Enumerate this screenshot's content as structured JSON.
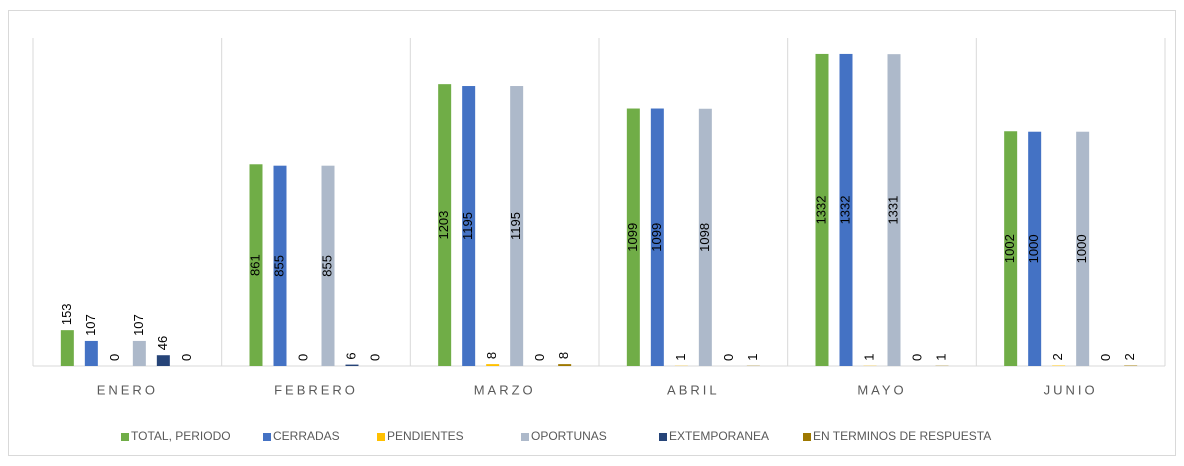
{
  "chart_data": {
    "type": "bar",
    "categories": [
      "ENERO",
      "FEBRERO",
      "MARZO",
      "ABRIL",
      "MAYO",
      "JUNIO"
    ],
    "series": [
      {
        "name": "TOTAL, PERIODO",
        "color": "#70ad47",
        "values": [
          153,
          861,
          1203,
          1099,
          1332,
          1002
        ]
      },
      {
        "name": "CERRADAS",
        "color": "#4472c4",
        "values": [
          107,
          855,
          1195,
          1099,
          1332,
          1000
        ]
      },
      {
        "name": "PENDIENTES",
        "color": "#ffc000",
        "values": [
          0,
          0,
          8,
          1,
          1,
          2
        ]
      },
      {
        "name": "OPORTUNAS",
        "color": "#adb9ca",
        "values": [
          107,
          855,
          1195,
          1098,
          1331,
          1000
        ]
      },
      {
        "name": "EXTEMPORANEA",
        "color": "#264478",
        "values": [
          46,
          6,
          0,
          0,
          0,
          0
        ]
      },
      {
        "name": "EN TERMINOS DE RESPUESTA",
        "color": "#9e7800",
        "values": [
          0,
          0,
          8,
          1,
          1,
          2
        ]
      }
    ],
    "ylim": [
      0,
      1400
    ],
    "legend": "bottom"
  }
}
